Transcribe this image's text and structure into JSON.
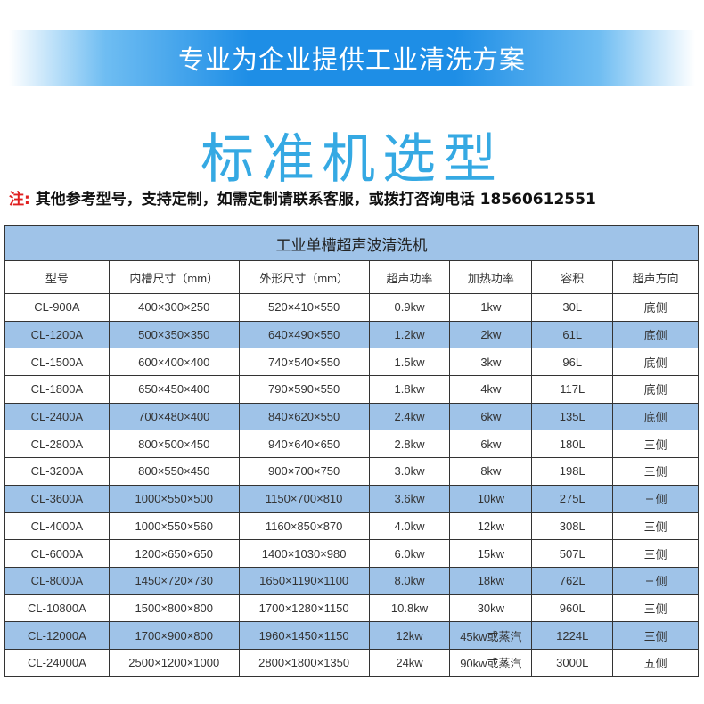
{
  "banner": {
    "text": "专业为企业提供工业清洗方案"
  },
  "heading": {
    "text": "标准机选型"
  },
  "note": {
    "label": "注:",
    "text": "其他参考型号，支持定制，如需定制请联系客服，或拨打咨询电话 18560612551"
  },
  "table": {
    "caption": "工业单槽超声波清洗机",
    "highlight_color": "#9fc3e8",
    "columns": [
      "型号",
      "内槽尺寸（mm）",
      "外形尺寸（mm）",
      "超声功率",
      "加热功率",
      "容积",
      "超声方向"
    ],
    "rows": [
      {
        "cells": [
          "CL-900A",
          "400×300×250",
          "520×410×550",
          "0.9kw",
          "1kw",
          "30L",
          "底侧"
        ],
        "highlight": false
      },
      {
        "cells": [
          "CL-1200A",
          "500×350×350",
          "640×490×550",
          "1.2kw",
          "2kw",
          "61L",
          "底侧"
        ],
        "highlight": true
      },
      {
        "cells": [
          "CL-1500A",
          "600×400×400",
          "740×540×550",
          "1.5kw",
          "3kw",
          "96L",
          "底侧"
        ],
        "highlight": false
      },
      {
        "cells": [
          "CL-1800A",
          "650×450×400",
          "790×590×550",
          "1.8kw",
          "4kw",
          "117L",
          "底侧"
        ],
        "highlight": false
      },
      {
        "cells": [
          "CL-2400A",
          "700×480×400",
          "840×620×550",
          "2.4kw",
          "6kw",
          "135L",
          "底侧"
        ],
        "highlight": true
      },
      {
        "cells": [
          "CL-2800A",
          "800×500×450",
          "940×640×650",
          "2.8kw",
          "6kw",
          "180L",
          "三侧"
        ],
        "highlight": false
      },
      {
        "cells": [
          "CL-3200A",
          "800×550×450",
          "900×700×750",
          "3.0kw",
          "8kw",
          "198L",
          "三侧"
        ],
        "highlight": false
      },
      {
        "cells": [
          "CL-3600A",
          "1000×550×500",
          "1150×700×810",
          "3.6kw",
          "10kw",
          "275L",
          "三侧"
        ],
        "highlight": true
      },
      {
        "cells": [
          "CL-4000A",
          "1000×550×560",
          "1160×850×870",
          "4.0kw",
          "12kw",
          "308L",
          "三侧"
        ],
        "highlight": false
      },
      {
        "cells": [
          "CL-6000A",
          "1200×650×650",
          "1400×1030×980",
          "6.0kw",
          "15kw",
          "507L",
          "三侧"
        ],
        "highlight": false
      },
      {
        "cells": [
          "CL-8000A",
          "1450×720×730",
          "1650×1190×1100",
          "8.0kw",
          "18kw",
          "762L",
          "三侧"
        ],
        "highlight": true
      },
      {
        "cells": [
          "CL-10800A",
          "1500×800×800",
          "1700×1280×1150",
          "10.8kw",
          "30kw",
          "960L",
          "三侧"
        ],
        "highlight": false
      },
      {
        "cells": [
          "CL-12000A",
          "1700×900×800",
          "1960×1450×1150",
          "12kw",
          "45kw或蒸汽",
          "1224L",
          "三侧"
        ],
        "highlight": true
      },
      {
        "cells": [
          "CL-24000A",
          "2500×1200×1000",
          "2800×1800×1350",
          "24kw",
          "90kw或蒸汽",
          "3000L",
          "五侧"
        ],
        "highlight": false
      }
    ]
  }
}
